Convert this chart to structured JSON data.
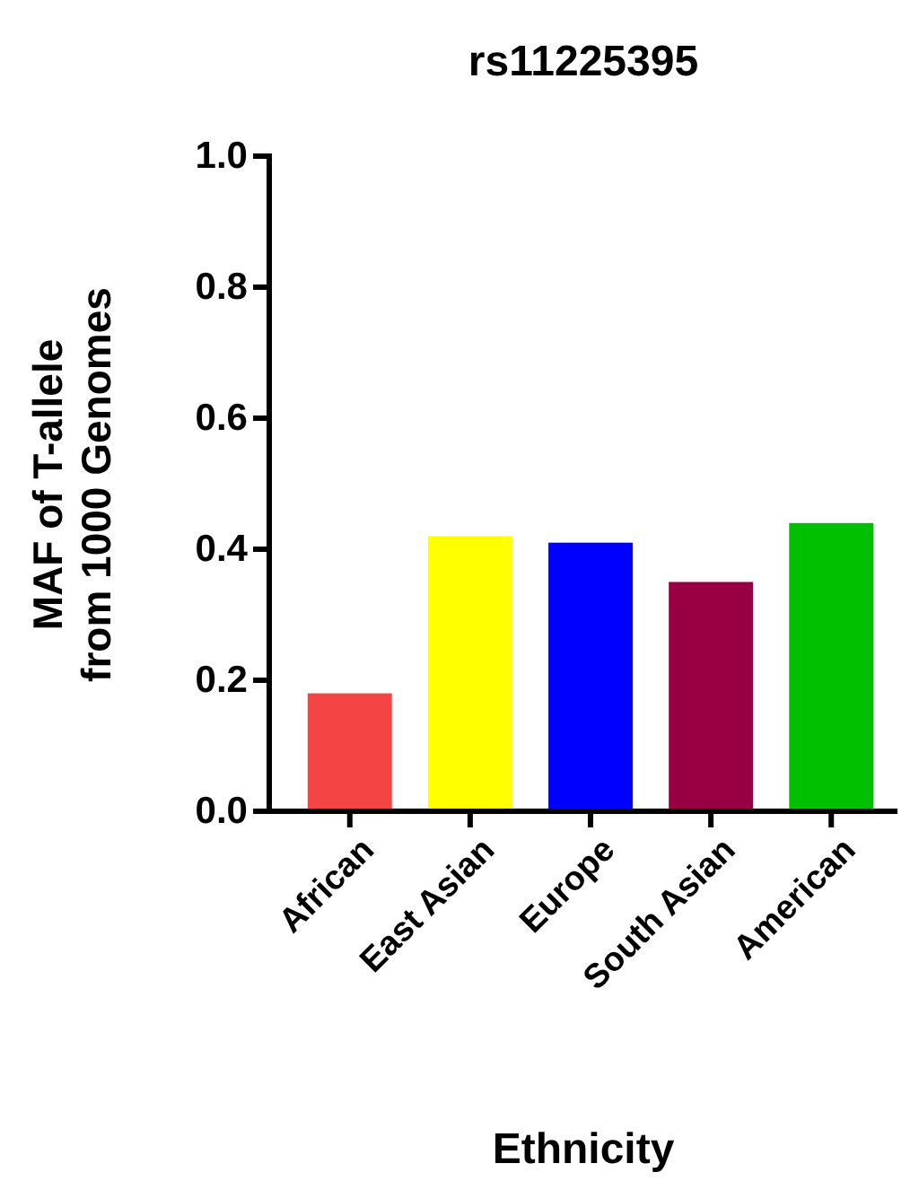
{
  "chart_data": {
    "type": "bar",
    "title": "rs11225395",
    "xlabel": "Ethnicity",
    "ylabel": "MAF of T-allele\nfrom 1000 Genomes",
    "categories": [
      "African",
      "East Asian",
      "Europe",
      "South Asian",
      "American"
    ],
    "values": [
      0.18,
      0.42,
      0.41,
      0.35,
      0.44
    ],
    "colors": [
      "#f44444",
      "#ffff00",
      "#0000ff",
      "#990044",
      "#00c000"
    ],
    "ylim": [
      0,
      1
    ],
    "yticks": [
      {
        "value": 0,
        "label": "0.0"
      },
      {
        "value": 0.2,
        "label": "0.2"
      },
      {
        "value": 0.4,
        "label": "0.4"
      },
      {
        "value": 0.6,
        "label": "0.6"
      },
      {
        "value": 0.8,
        "label": "0.8"
      },
      {
        "value": 1,
        "label": "1.0"
      }
    ]
  }
}
